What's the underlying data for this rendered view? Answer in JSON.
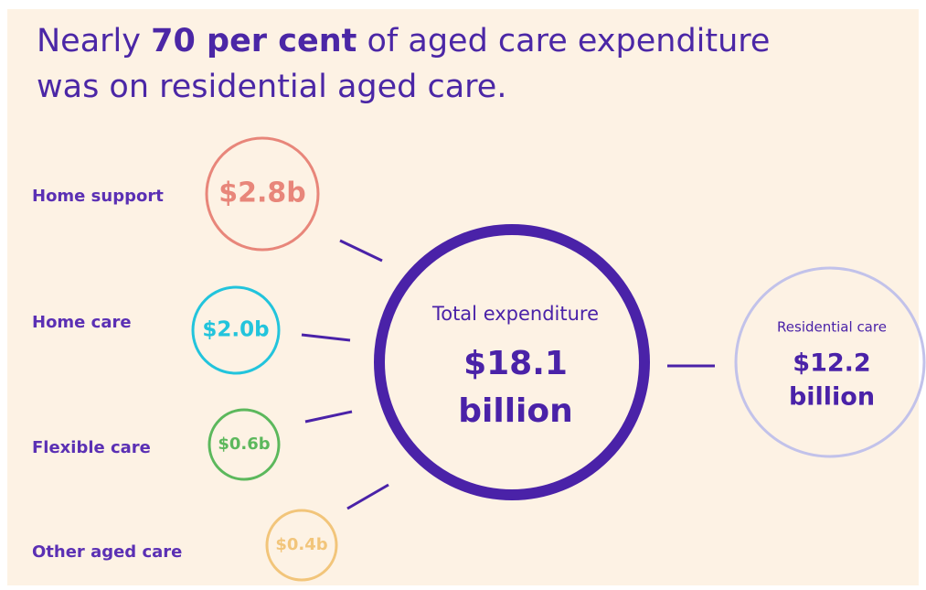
{
  "title": {
    "line1": [
      "Nearly ",
      "70 per cent",
      " of aged care expenditure"
    ],
    "line2": "was on residential aged care."
  },
  "nodes": [
    {
      "label": "Home support",
      "value": "$2.8b"
    },
    {
      "label": "Home care",
      "value": "$2.0b"
    },
    {
      "label": "Flexible care",
      "value": "$0.6b"
    },
    {
      "label": "Other aged care",
      "value": "$0.4b"
    }
  ],
  "total": {
    "label": "Total expenditure",
    "value": "$18.1",
    "unit": "billion"
  },
  "residential": {
    "label": "Residential care",
    "value": "$12.2",
    "unit": "billion"
  }
}
